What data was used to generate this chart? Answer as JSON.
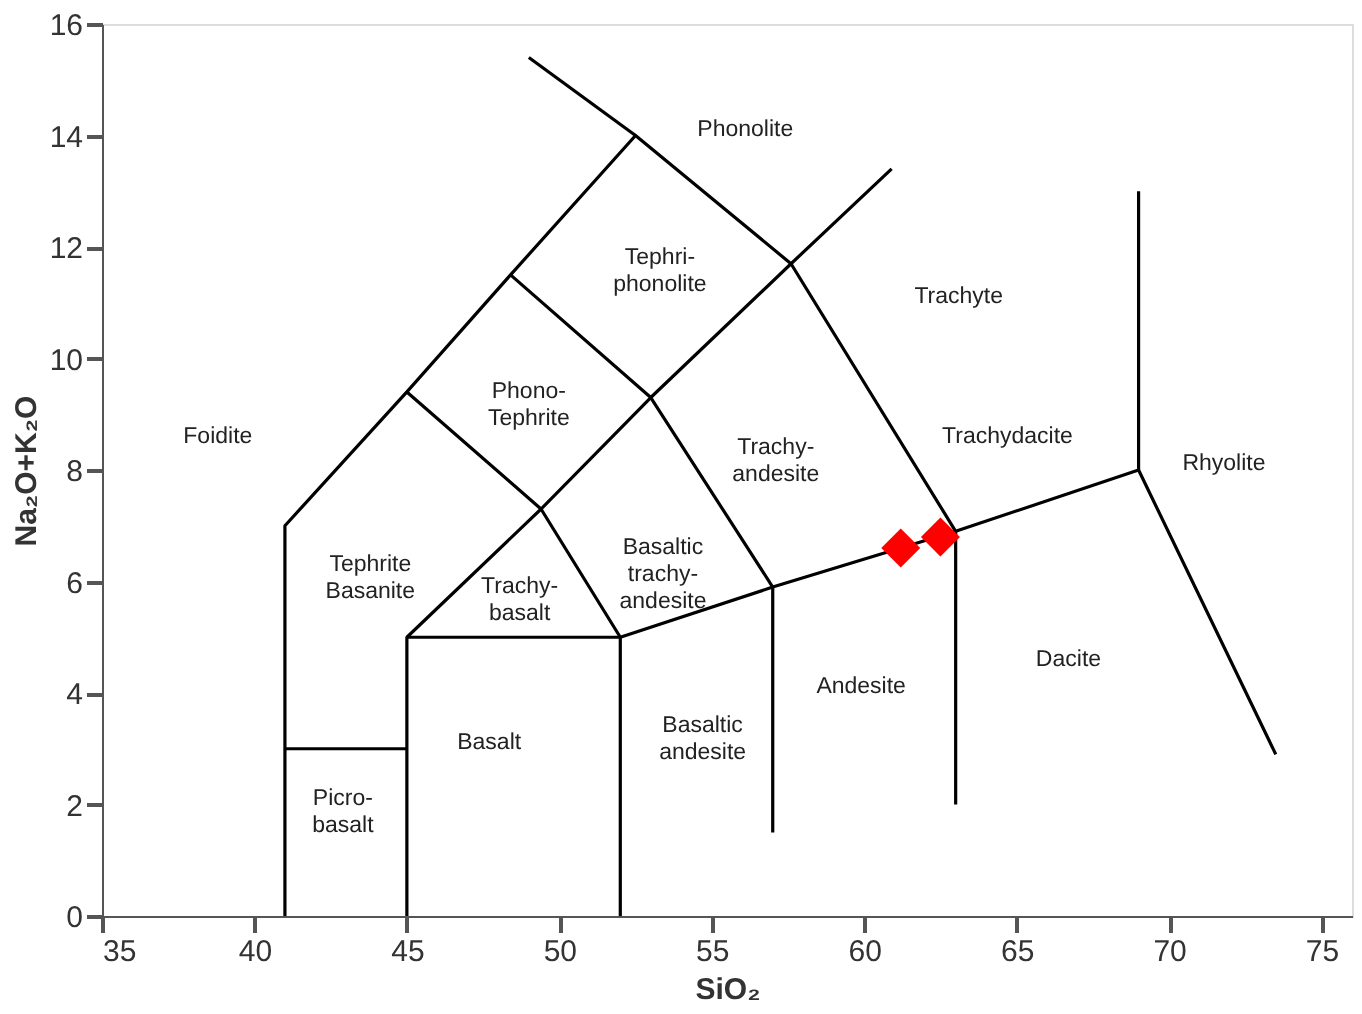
{
  "chart_data": {
    "type": "line",
    "xlabel": "SiO₂",
    "ylabel": "Na₂O+K₂O",
    "xlim": [
      35,
      76
    ],
    "ylim": [
      0,
      16
    ],
    "xticks": [
      35,
      40,
      45,
      50,
      55,
      60,
      65,
      70,
      75
    ],
    "yticks": [
      0,
      2,
      4,
      6,
      8,
      10,
      12,
      14,
      16
    ],
    "grid": false,
    "marker": "none",
    "line_style": "solid",
    "series": [
      {
        "type": "line",
        "color": "#000000",
        "x": [
          41,
          41,
          45,
          48.4,
          52.5,
          57.6,
          63
        ],
        "values": [
          0,
          7,
          9.4,
          11.5,
          14,
          11.7,
          6.9
        ]
      },
      {
        "type": "line",
        "color": "#000000",
        "x": [
          41,
          45
        ],
        "values": [
          3,
          3
        ]
      },
      {
        "type": "line",
        "color": "#000000",
        "x": [
          45,
          45,
          52,
          52
        ],
        "values": [
          0,
          5,
          5,
          0
        ]
      },
      {
        "type": "line",
        "color": "#000000",
        "x": [
          45,
          49.4,
          52
        ],
        "values": [
          5,
          7.3,
          5
        ]
      },
      {
        "type": "line",
        "color": "#000000",
        "x": [
          52,
          57,
          63,
          69,
          73.5
        ],
        "values": [
          5,
          5.9,
          6.9,
          8,
          2.9
        ]
      },
      {
        "type": "line",
        "color": "#000000",
        "x": [
          57,
          57,
          53,
          48.4
        ],
        "values": [
          1.5,
          5.9,
          9.3,
          11.5
        ]
      },
      {
        "type": "line",
        "color": "#000000",
        "x": [
          45,
          49.4,
          53,
          57.6,
          60.9
        ],
        "values": [
          9.4,
          7.3,
          9.3,
          11.7,
          13.4
        ]
      },
      {
        "type": "line",
        "color": "#000000",
        "x": [
          63,
          63
        ],
        "values": [
          2,
          6.9
        ]
      },
      {
        "type": "line",
        "color": "#000000",
        "x": [
          69,
          69
        ],
        "values": [
          8,
          13
        ]
      },
      {
        "type": "line",
        "color": "#000000",
        "x": [
          49,
          52.5
        ],
        "values": [
          15.4,
          14
        ]
      },
      {
        "type": "scatter",
        "color": "#ff0000",
        "marker": "diamond",
        "x": [
          61.2,
          62.5
        ],
        "values": [
          6.6,
          6.8
        ]
      }
    ],
    "annotations": [
      "Foidite",
      "Phonolite",
      "Tephri-\nphonolite",
      "Trachyte",
      "Phono-\nTephrite",
      "Trachy-\nandesite",
      "Trachydacite",
      "Rhyolite",
      "Tephrite\nBasanite",
      "Basaltic\ntrachy-\nandesite",
      "Trachy-\nbasalt",
      "Basalt",
      "Basaltic\nandesite",
      "Andesite",
      "Dacite",
      "Picro-\nbasalt"
    ]
  }
}
